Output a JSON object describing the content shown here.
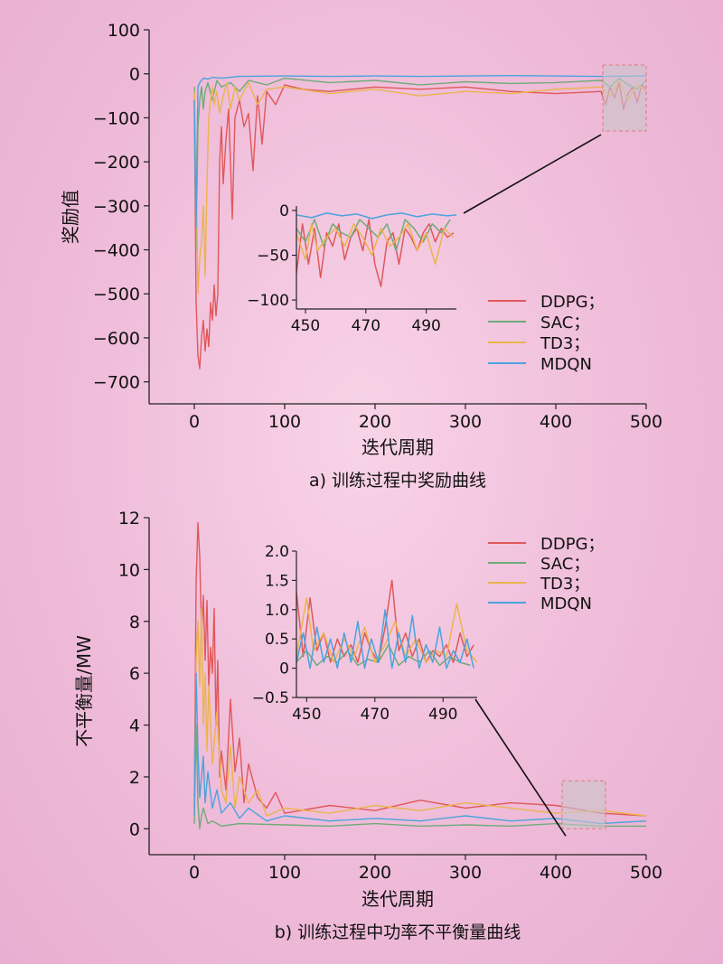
{
  "colors": {
    "DDPG": "#e0585a",
    "SAC": "#6fab78",
    "TD3": "#eab44d",
    "MDQN": "#4aa3de",
    "axis": "#222222",
    "zoom_box_fill": "#c9c4cc",
    "zoom_box_stroke": "#e07a7a"
  },
  "chart_data": [
    {
      "type": "line",
      "caption": "a) 训练过程中奖励曲线",
      "xlabel": "迭代周期",
      "ylabel": "奖励值",
      "xlim": [
        -50,
        500
      ],
      "ylim": [
        -750,
        100
      ],
      "xticks": [
        0,
        100,
        200,
        300,
        400,
        500
      ],
      "yticks": [
        100,
        0,
        -100,
        -200,
        -300,
        -400,
        -500,
        -600,
        -700
      ],
      "ytick_labels": [
        "100",
        "0",
        "−100",
        "−200",
        "−300",
        "−400",
        "−500",
        "−600",
        "−700"
      ],
      "legend_position": "inside-right",
      "series": [
        {
          "name": "DDPG；",
          "color_key": "DDPG",
          "x": [
            0,
            2,
            4,
            6,
            8,
            10,
            12,
            14,
            16,
            18,
            20,
            22,
            24,
            26,
            28,
            30,
            32,
            35,
            38,
            40,
            42,
            45,
            50,
            55,
            60,
            65,
            70,
            75,
            80,
            90,
            100,
            120,
            150,
            200,
            250,
            300,
            350,
            400,
            450,
            455,
            460,
            465,
            470,
            475,
            480,
            485,
            490,
            495,
            500
          ],
          "y": [
            -60,
            -520,
            -640,
            -670,
            -600,
            -560,
            -630,
            -580,
            -620,
            -520,
            -560,
            -480,
            -550,
            -500,
            -200,
            -120,
            -250,
            -150,
            -80,
            -200,
            -330,
            -100,
            -60,
            -120,
            -90,
            -220,
            -50,
            -160,
            -40,
            -70,
            -25,
            -35,
            -40,
            -30,
            -35,
            -30,
            -40,
            -45,
            -40,
            -70,
            -30,
            -55,
            -20,
            -80,
            -45,
            -30,
            -65,
            -25,
            -35
          ]
        },
        {
          "name": "SAC；",
          "color_key": "SAC",
          "x": [
            0,
            2,
            4,
            6,
            8,
            10,
            12,
            15,
            20,
            25,
            30,
            40,
            50,
            60,
            80,
            100,
            150,
            200,
            250,
            300,
            350,
            400,
            450,
            460,
            470,
            480,
            490,
            500
          ],
          "y": [
            -30,
            -400,
            -120,
            -60,
            -30,
            -80,
            -40,
            -20,
            -60,
            -15,
            -30,
            -20,
            -40,
            -15,
            -25,
            -10,
            -20,
            -15,
            -25,
            -18,
            -22,
            -20,
            -15,
            -30,
            -10,
            -25,
            -35,
            -15
          ]
        },
        {
          "name": "TD3；",
          "color_key": "TD3",
          "x": [
            0,
            2,
            4,
            6,
            8,
            10,
            12,
            14,
            16,
            18,
            20,
            22,
            25,
            28,
            32,
            36,
            40,
            45,
            50,
            60,
            70,
            80,
            100,
            150,
            200,
            250,
            300,
            350,
            400,
            450,
            460,
            470,
            480,
            490,
            500
          ],
          "y": [
            -40,
            -200,
            -500,
            -420,
            -380,
            -300,
            -460,
            -250,
            -100,
            -60,
            -30,
            -70,
            -40,
            -90,
            -50,
            -20,
            -80,
            -30,
            -60,
            -20,
            -70,
            -35,
            -30,
            -45,
            -35,
            -50,
            -40,
            -45,
            -35,
            -30,
            -50,
            -15,
            -60,
            -25,
            -40
          ]
        },
        {
          "name": "MDQN",
          "color_key": "MDQN",
          "x": [
            0,
            2,
            4,
            6,
            8,
            10,
            15,
            20,
            30,
            50,
            100,
            150,
            200,
            250,
            300,
            350,
            400,
            450,
            500
          ],
          "y": [
            -60,
            -350,
            -30,
            -20,
            -15,
            -10,
            -12,
            -8,
            -10,
            -6,
            -5,
            -6,
            -5,
            -6,
            -5,
            -4,
            -5,
            -6,
            -5
          ]
        }
      ],
      "zoom_box": {
        "x": [
          452,
          500
        ],
        "y": [
          -130,
          20
        ]
      },
      "inset": {
        "xlim": [
          447,
          500
        ],
        "ylim": [
          -110,
          5
        ],
        "xticks": [
          450,
          470,
          490
        ],
        "yticks": [
          0,
          -50,
          -100
        ],
        "ytick_labels": [
          "0",
          "−50",
          "−100"
        ],
        "series": [
          {
            "color_key": "DDPG",
            "x": [
              447,
              449,
              451,
              453,
              455,
              457,
              459,
              461,
              463,
              465,
              467,
              469,
              471,
              473,
              475,
              477,
              479,
              481,
              483,
              485,
              487,
              489,
              491,
              493,
              495,
              497,
              499
            ],
            "y": [
              -70,
              -15,
              -60,
              -20,
              -75,
              -25,
              -40,
              -15,
              -55,
              -30,
              -20,
              -45,
              -10,
              -60,
              -85,
              -35,
              -25,
              -60,
              -20,
              -30,
              -45,
              -25,
              -15,
              -35,
              -20,
              -30,
              -25
            ]
          },
          {
            "color_key": "SAC",
            "x": [
              447,
              450,
              453,
              456,
              459,
              462,
              465,
              468,
              471,
              474,
              477,
              480,
              483,
              486,
              489,
              492,
              495,
              498
            ],
            "y": [
              -20,
              -35,
              -10,
              -40,
              -15,
              -25,
              -30,
              -10,
              -20,
              -30,
              -15,
              -45,
              -10,
              -20,
              -35,
              -15,
              -25,
              -10
            ]
          },
          {
            "color_key": "TD3",
            "x": [
              447,
              450,
              452,
              454,
              457,
              460,
              463,
              466,
              469,
              472,
              475,
              478,
              481,
              484,
              487,
              490,
              493,
              496,
              499
            ],
            "y": [
              -25,
              -55,
              -15,
              -45,
              -30,
              -20,
              -40,
              -15,
              -30,
              -50,
              -20,
              -40,
              -30,
              -15,
              -45,
              -25,
              -60,
              -20,
              -30
            ]
          },
          {
            "color_key": "MDQN",
            "x": [
              447,
              452,
              457,
              462,
              467,
              472,
              477,
              482,
              487,
              492,
              497,
              500
            ],
            "y": [
              -5,
              -8,
              -3,
              -6,
              -4,
              -9,
              -5,
              -3,
              -7,
              -4,
              -6,
              -5
            ]
          }
        ]
      }
    },
    {
      "type": "line",
      "caption": "b) 训练过程中功率不平衡量曲线",
      "xlabel": "迭代周期",
      "ylabel": "不平衡量/MW",
      "xlim": [
        -50,
        500
      ],
      "ylim": [
        -1,
        12
      ],
      "xticks": [
        0,
        100,
        200,
        300,
        400,
        500
      ],
      "yticks": [
        12,
        10,
        8,
        6,
        4,
        2,
        0
      ],
      "ytick_labels": [
        "12",
        "10",
        "8",
        "6",
        "4",
        "2",
        "0"
      ],
      "legend_position": "top-right",
      "series": [
        {
          "name": "DDPG；",
          "color_key": "DDPG",
          "x": [
            0,
            2,
            4,
            6,
            8,
            10,
            12,
            14,
            16,
            18,
            20,
            22,
            24,
            26,
            28,
            30,
            35,
            40,
            45,
            50,
            55,
            60,
            70,
            80,
            90,
            100,
            150,
            200,
            250,
            300,
            350,
            400,
            450,
            500
          ],
          "y": [
            0.8,
            9.5,
            11.8,
            10.5,
            7.5,
            9,
            6.5,
            8.8,
            5.5,
            7,
            6,
            8.5,
            4,
            6.5,
            2,
            3,
            1.5,
            5,
            2.2,
            3.5,
            1,
            2.5,
            1.2,
            0.8,
            1.4,
            0.6,
            0.9,
            0.7,
            1.1,
            0.8,
            1,
            0.9,
            0.6,
            0.5
          ]
        },
        {
          "name": "SAC；",
          "color_key": "SAC",
          "x": [
            0,
            2,
            4,
            6,
            8,
            10,
            15,
            20,
            30,
            50,
            100,
            150,
            200,
            250,
            300,
            350,
            400,
            450,
            500
          ],
          "y": [
            0.2,
            4,
            1,
            0,
            0.5,
            0.8,
            0.2,
            0.3,
            0.1,
            0.2,
            0.15,
            0.1,
            0.2,
            0.1,
            0.15,
            0.1,
            0.2,
            0.1,
            0.1
          ]
        },
        {
          "name": "TD3；",
          "color_key": "TD3",
          "x": [
            0,
            2,
            4,
            6,
            8,
            10,
            12,
            14,
            16,
            20,
            25,
            30,
            35,
            40,
            45,
            50,
            60,
            70,
            80,
            100,
            150,
            200,
            250,
            300,
            350,
            400,
            450,
            500
          ],
          "y": [
            0.5,
            6.5,
            8,
            5.5,
            8.5,
            4,
            6,
            3,
            5.5,
            2.5,
            4.5,
            1.5,
            1,
            3.2,
            0.8,
            2,
            1,
            1.5,
            0.5,
            0.8,
            0.6,
            0.9,
            0.7,
            1,
            0.8,
            0.6,
            0.7,
            0.5
          ]
        },
        {
          "name": "MDQN",
          "color_key": "MDQN",
          "x": [
            0,
            2,
            4,
            6,
            8,
            10,
            12,
            15,
            20,
            25,
            30,
            40,
            50,
            60,
            80,
            100,
            150,
            200,
            250,
            300,
            350,
            400,
            450,
            500
          ],
          "y": [
            0.5,
            6,
            3,
            1.2,
            2,
            2.8,
            1,
            2.2,
            0.8,
            1.5,
            0.6,
            1,
            0.4,
            0.8,
            0.3,
            0.5,
            0.3,
            0.4,
            0.3,
            0.5,
            0.3,
            0.4,
            0.2,
            0.3
          ]
        }
      ],
      "zoom_box": {
        "x": [
          407,
          455
        ],
        "y": [
          0,
          1.85
        ]
      },
      "inset": {
        "xlim": [
          447,
          500
        ],
        "ylim": [
          -0.5,
          2.0
        ],
        "xticks": [
          450,
          470,
          490
        ],
        "yticks": [
          2.0,
          1.5,
          1.0,
          0.5,
          0,
          -0.5
        ],
        "ytick_labels": [
          "2.0",
          "1.5",
          "1.0",
          "0.5",
          "0",
          "−0.5"
        ],
        "series": [
          {
            "color_key": "DDPG",
            "x": [
              447,
              449,
              451,
              453,
              455,
              457,
              459,
              461,
              463,
              465,
              467,
              469,
              471,
              473,
              475,
              477,
              479,
              481,
              483,
              485,
              487,
              489,
              491,
              493,
              495,
              497,
              499
            ],
            "y": [
              1.3,
              0.2,
              1.2,
              0.3,
              0.6,
              0.1,
              0.5,
              0.2,
              0.4,
              0.1,
              0.6,
              0.3,
              0.1,
              0.7,
              1.5,
              0.3,
              0.6,
              0.2,
              0.5,
              0.1,
              0.3,
              0.2,
              0.4,
              0.1,
              0.6,
              0.2,
              0.4
            ]
          },
          {
            "color_key": "SAC",
            "x": [
              447,
              450,
              453,
              456,
              459,
              462,
              465,
              468,
              471,
              474,
              477,
              480,
              483,
              486,
              489,
              492,
              495,
              498
            ],
            "y": [
              0.1,
              0.3,
              0.05,
              0.2,
              0.1,
              0.3,
              0.05,
              0.15,
              0.1,
              0.4,
              0.05,
              0.2,
              0.1,
              0.3,
              0.05,
              0.2,
              0.1,
              0.05
            ]
          },
          {
            "color_key": "TD3",
            "x": [
              447,
              450,
              452,
              455,
              458,
              461,
              464,
              467,
              470,
              473,
              476,
              479,
              482,
              485,
              488,
              491,
              494,
              497,
              500
            ],
            "y": [
              0.2,
              1.2,
              0.3,
              0.6,
              0.1,
              0.5,
              0.2,
              0.7,
              0.1,
              0.4,
              0.8,
              0.2,
              0.5,
              0.1,
              0.3,
              0.2,
              1.1,
              0.3,
              0.1
            ]
          },
          {
            "color_key": "MDQN",
            "x": [
              447,
              449,
              451,
              453,
              455,
              457,
              459,
              461,
              463,
              465,
              467,
              469,
              471,
              473,
              475,
              477,
              479,
              481,
              483,
              485,
              487,
              489,
              491,
              493,
              495,
              497,
              499
            ],
            "y": [
              0.1,
              0.6,
              0.0,
              0.7,
              0.1,
              0.5,
              0.0,
              0.6,
              0.1,
              0.8,
              0.0,
              0.5,
              0.1,
              1.0,
              0.0,
              0.6,
              0.1,
              0.9,
              0.0,
              0.4,
              0.1,
              0.7,
              0.0,
              0.3,
              0.1,
              0.5,
              0.0
            ]
          }
        ]
      }
    }
  ]
}
